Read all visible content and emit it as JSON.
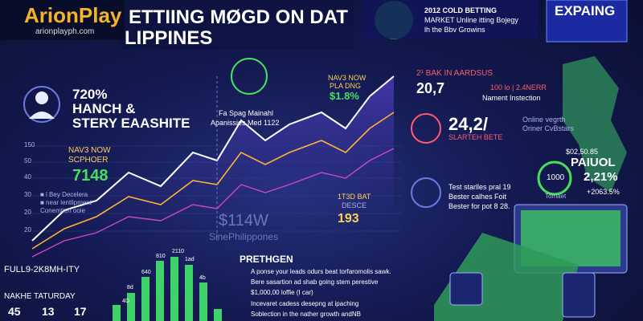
{
  "logo": {
    "name": "ArionPlay",
    "url": "arionplayph.com"
  },
  "title": [
    "ETTIING MØGD ON DAT",
    "LIPPINES"
  ],
  "top_box": [
    "2012 COLD BETTING",
    "MARKET Unline itting Bojegy",
    "lh the Bbv Growins"
  ],
  "badge": "EXPAING",
  "left_panel": {
    "headline": [
      "720%",
      "HANCH &",
      "STERY EAASHITE"
    ],
    "stat_label": [
      "NAV3 NOW",
      "SCPHOER"
    ],
    "stat": "7148",
    "legend": [
      "■ l Bey Decelera",
      "■ near lentlipment",
      "Conemtien ooie"
    ]
  },
  "axis_labels": [
    "150",
    "50",
    "40",
    "30",
    "20",
    "20"
  ],
  "middle": {
    "callout": [
      "Fa Spag Mainahl",
      "Apanissies Med 1122"
    ],
    "now": [
      "NAV3 NOW",
      "PLA DNG",
      "$1.8%"
    ],
    "bat": [
      "1T3D BAT",
      "DESCE",
      "193"
    ],
    "watermark": [
      "$114W",
      "SinePhilippones"
    ]
  },
  "bottom_left": {
    "labels": [
      "FULL9-2K8MH-ITY",
      "NAKHE TATURDAY"
    ],
    "counters": [
      "45",
      "13",
      "17"
    ]
  },
  "bar_labels": [
    "4D",
    "8d",
    "640",
    "810",
    "2110",
    "1ad",
    "4b"
  ],
  "list": {
    "title": "PRETHGEN",
    "items": [
      "A ponse your leads odurs beat torfaromolis sawk.",
      "Bere sasartion ad shab going stem perestive",
      "$1,000,00 loffie (I car)",
      "Incevaret cadess desepng at ipaching",
      "Soblection in the nather growth andNB"
    ]
  },
  "right": {
    "bak": [
      "2¹ BAK IN AARDSUS",
      "20,7",
      "100 lo | 2.4NERR",
      "Nament Instection"
    ],
    "slart": [
      "24,2/",
      "SLARTEH BETE"
    ],
    "online": [
      "Online vegrth",
      "Oriner CvBstars"
    ],
    "stats": [
      "$02,50.85",
      "PAIUOL",
      "1000",
      "2,21%",
      "Tomaet",
      "+2063.5%"
    ],
    "notes": [
      "Test starlles pral 19",
      "Bester calhes Foit",
      "Bester for pot 8 28."
    ]
  }
}
